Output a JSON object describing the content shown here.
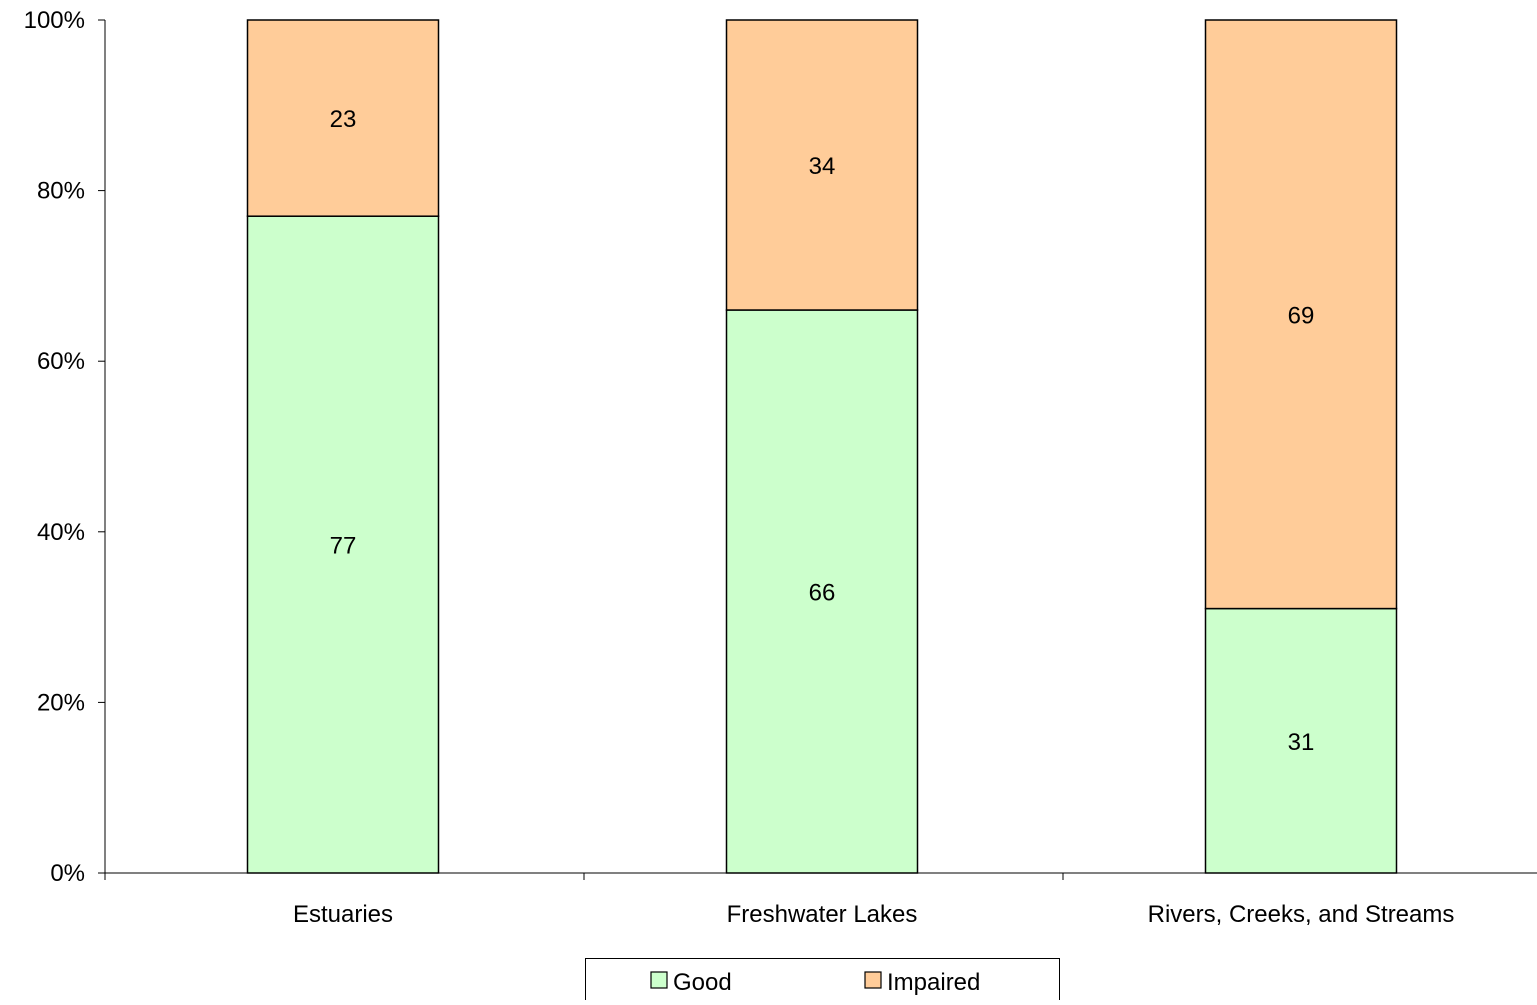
{
  "chart_data": {
    "type": "bar",
    "stacked": true,
    "percent_stacked": true,
    "categories": [
      "Estuaries",
      "Freshwater Lakes",
      "Rivers, Creeks, and Streams"
    ],
    "series": [
      {
        "name": "Good",
        "values": [
          77,
          66,
          31
        ],
        "color": "#CCFFCC"
      },
      {
        "name": "Impaired",
        "values": [
          23,
          34,
          69
        ],
        "color": "#FFCC99"
      }
    ],
    "y_ticks": [
      "0%",
      "20%",
      "40%",
      "60%",
      "80%",
      "100%"
    ],
    "ylim": [
      0,
      100
    ],
    "grid": false,
    "legend_position": "bottom",
    "title": "",
    "xlabel": "",
    "ylabel": ""
  }
}
